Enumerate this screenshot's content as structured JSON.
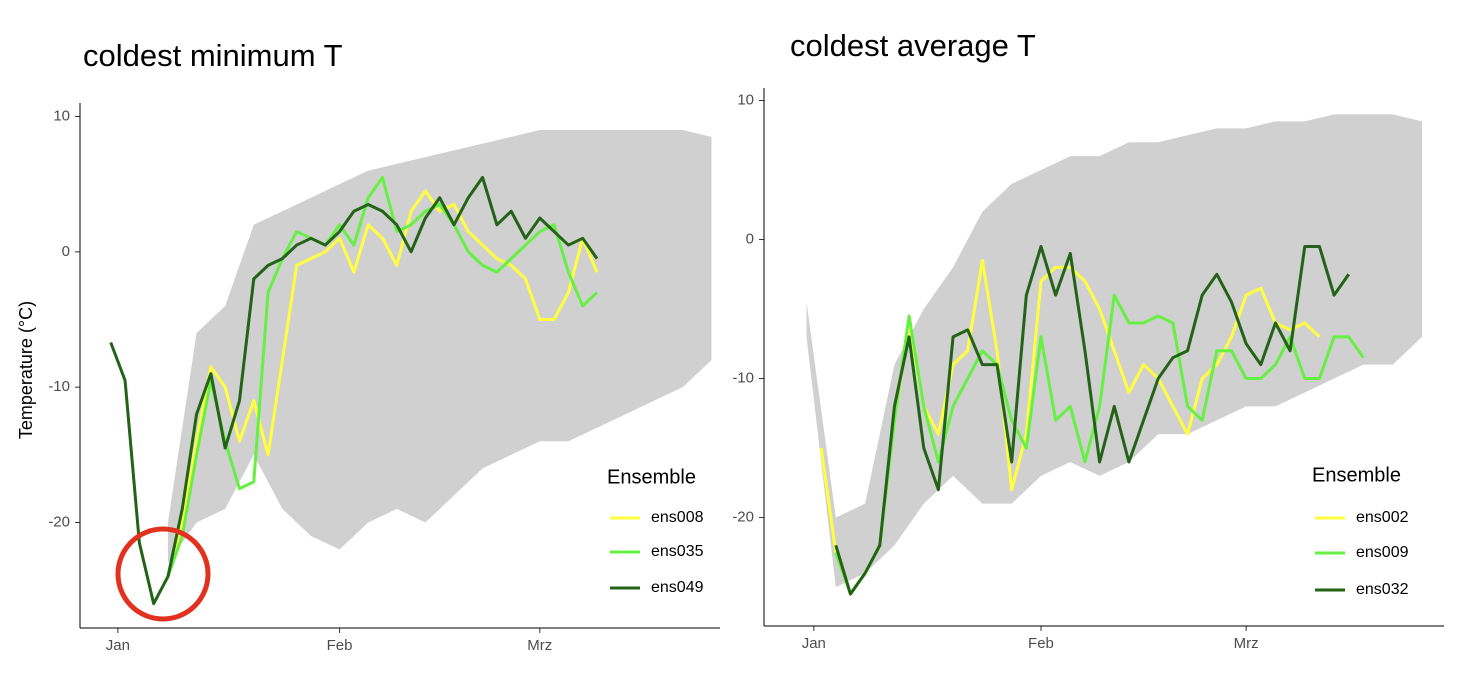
{
  "chart_data": [
    {
      "type": "line",
      "title": "coldest minimum T",
      "ylabel": "Temperature (°C)",
      "legend_title": "Ensemble",
      "xlim": [
        -4.3,
        85.2
      ],
      "ylim": [
        -27.8,
        11
      ],
      "xticks": [
        {
          "value": 1,
          "label": "Jan"
        },
        {
          "value": 32,
          "label": "Feb"
        },
        {
          "value": 60,
          "label": "Mrz"
        }
      ],
      "yticks": [
        -20,
        -10,
        0,
        10
      ],
      "band": {
        "color": "#c8c8c8",
        "x": [
          8,
          12,
          16,
          20,
          24,
          28,
          32,
          36,
          40,
          44,
          48,
          52,
          56,
          60,
          64,
          68,
          72,
          76,
          80,
          84
        ],
        "lower": [
          -23,
          -20,
          -19,
          -15,
          -19,
          -21,
          -22,
          -20,
          -19,
          -20,
          -18,
          -16,
          -15,
          -14,
          -14,
          -13,
          -12,
          -11,
          -10,
          -8
        ],
        "upper": [
          -20,
          -6,
          -4,
          2,
          3,
          4,
          5,
          6,
          6.5,
          7,
          7.5,
          8,
          8.5,
          9,
          9,
          9,
          9,
          9,
          9,
          8.5
        ]
      },
      "x": [
        0,
        2,
        4,
        6,
        8,
        10,
        12,
        14,
        16,
        18,
        20,
        22,
        24,
        26,
        28,
        30,
        32,
        34,
        36,
        38,
        40,
        42,
        44,
        46,
        48,
        50,
        52,
        54,
        56,
        58,
        60,
        62,
        64,
        66,
        68
      ],
      "series": [
        {
          "name": "ens008",
          "color": "#ffff40",
          "values": [
            null,
            null,
            null,
            null,
            -24,
            -20,
            -14,
            -8.5,
            -10,
            -14,
            -11,
            -15,
            -8,
            -1,
            -0.5,
            0,
            1,
            -1.5,
            2,
            1,
            -1,
            3,
            4.5,
            3,
            3.5,
            1.5,
            0.5,
            -0.5,
            -1,
            -2,
            -5,
            -5,
            -3,
            1,
            -1.5
          ]
        },
        {
          "name": "ens035",
          "color": "#66f043",
          "values": [
            null,
            null,
            null,
            null,
            -24,
            -21,
            -15,
            -9.5,
            -14,
            -17.5,
            -17,
            -3,
            -0.5,
            1.5,
            1,
            0.5,
            2,
            0.5,
            4,
            5.5,
            1.5,
            2,
            3,
            3.5,
            2,
            0,
            -1,
            -1.5,
            -0.5,
            0.5,
            1.5,
            2,
            -1.5,
            -4,
            -3
          ]
        },
        {
          "name": "ens049",
          "color": "#236317",
          "values": [
            -6.7,
            -9.5,
            -21.5,
            -26,
            -24,
            -19,
            -12,
            -9,
            -14.5,
            -11,
            -2,
            -1,
            -0.5,
            0.5,
            1,
            0.5,
            1.5,
            3,
            3.5,
            3,
            2,
            0,
            2.5,
            4,
            2,
            4,
            5.5,
            2,
            3,
            1,
            2.5,
            1.5,
            0.5,
            1,
            -0.5
          ]
        }
      ]
    },
    {
      "type": "line",
      "title": "coldest average T",
      "legend_title": "Ensemble",
      "xlim": [
        -5.8,
        87
      ],
      "ylim": [
        -27.8,
        10.9
      ],
      "xticks": [
        {
          "value": 1,
          "label": "Jan"
        },
        {
          "value": 32,
          "label": "Feb"
        },
        {
          "value": 60,
          "label": "Mrz"
        }
      ],
      "yticks": [
        -20,
        -10,
        0,
        10
      ],
      "band": {
        "color": "#c8c8c8",
        "x": [
          0,
          4,
          8,
          12,
          16,
          20,
          24,
          28,
          32,
          36,
          40,
          44,
          48,
          52,
          56,
          60,
          64,
          68,
          72,
          76,
          80,
          84
        ],
        "lower": [
          -7,
          -25,
          -24,
          -22,
          -19,
          -17,
          -19,
          -19,
          -17,
          -16,
          -17,
          -16,
          -14,
          -14,
          -13,
          -12,
          -12,
          -11,
          -10,
          -9,
          -9,
          -7
        ],
        "upper": [
          -4.5,
          -20,
          -19,
          -9,
          -5,
          -2,
          2,
          4,
          5,
          6,
          6,
          7,
          7,
          7.5,
          8,
          8,
          8.5,
          8.5,
          9,
          9,
          9,
          8.5
        ]
      },
      "x": [
        2,
        4,
        6,
        8,
        10,
        12,
        14,
        16,
        18,
        20,
        22,
        24,
        26,
        28,
        30,
        32,
        34,
        36,
        38,
        40,
        42,
        44,
        46,
        48,
        50,
        52,
        54,
        56,
        58,
        60,
        62,
        64,
        66,
        68,
        70,
        72,
        74,
        76
      ],
      "series": [
        {
          "name": "ens002",
          "color": "#ffff40",
          "values": [
            -15,
            -22.5,
            -25.5,
            -24,
            -22,
            -13,
            -6,
            -12,
            -14,
            -9,
            -8,
            -1.5,
            -8,
            -18,
            -14,
            -3,
            -2,
            -2,
            -3,
            -5,
            -8,
            -11,
            -9,
            -10,
            -12,
            -14,
            -10,
            -9,
            -7,
            -4,
            -3.5,
            -6,
            -6.5,
            -6,
            -7,
            null,
            null,
            null
          ]
        },
        {
          "name": "ens009",
          "color": "#66f043",
          "values": [
            null,
            -22.5,
            -25.5,
            -24,
            -22,
            -13,
            -5.5,
            -12,
            -16,
            -12,
            -10,
            -8,
            -9,
            -13,
            -15,
            -7,
            -13,
            -12,
            -16,
            -12,
            -4,
            -6,
            -6,
            -5.5,
            -6,
            -12,
            -13,
            -8,
            -8,
            -10,
            -10,
            -9,
            -7,
            -10,
            -10,
            -7,
            -7,
            -8.5
          ]
        },
        {
          "name": "ens032",
          "color": "#236317",
          "values": [
            null,
            -22,
            -25.5,
            -24,
            -22,
            -12,
            -7,
            -15,
            -18,
            -7,
            -6.5,
            -9,
            -9,
            -16,
            -4,
            -0.5,
            -4,
            -1,
            -8,
            -16,
            -12,
            -16,
            -13,
            -10,
            -8.5,
            -8,
            -4,
            -2.5,
            -4.5,
            -7.5,
            -9,
            -6,
            -8,
            -0.5,
            -0.5,
            -4,
            -2.5,
            null
          ]
        }
      ]
    }
  ]
}
